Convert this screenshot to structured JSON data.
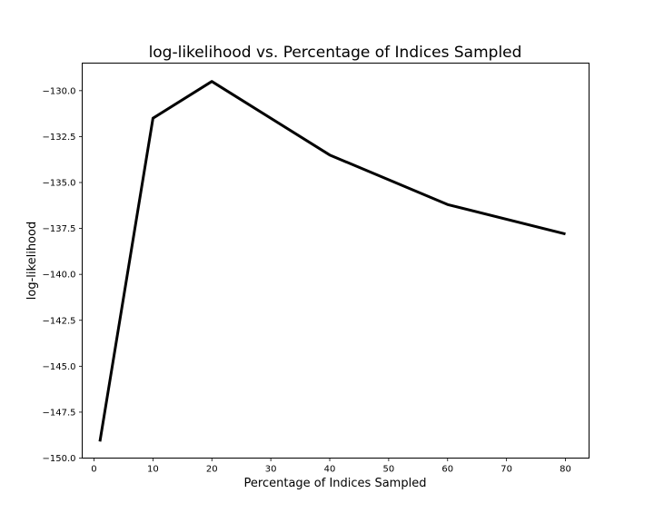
{
  "chart_data": {
    "type": "line",
    "title": "log-likelihood vs. Percentage of Indices Sampled",
    "xlabel": "Percentage of Indices Sampled",
    "ylabel": "log-likelihood",
    "xlim": [
      -2,
      84
    ],
    "ylim": [
      -150.0,
      -128.5
    ],
    "xticks": [
      0,
      10,
      20,
      30,
      40,
      50,
      60,
      70,
      80
    ],
    "xtick_labels": [
      "0",
      "10",
      "20",
      "30",
      "40",
      "50",
      "60",
      "70",
      "80"
    ],
    "yticks": [
      -130.0,
      -132.5,
      -135.0,
      -137.5,
      -140.0,
      -142.5,
      -145.0,
      -147.5,
      -150.0
    ],
    "ytick_labels": [
      "−130.0",
      "−132.5",
      "−135.0",
      "−137.5",
      "−140.0",
      "−142.5",
      "−145.0",
      "−147.5",
      "−150.0"
    ],
    "grid": false,
    "line_color": "#000000",
    "series": [
      {
        "x": [
          1,
          10,
          20,
          40,
          60,
          80
        ],
        "values": [
          -149.1,
          -131.5,
          -129.5,
          -133.5,
          -136.2,
          -137.8
        ]
      }
    ]
  }
}
